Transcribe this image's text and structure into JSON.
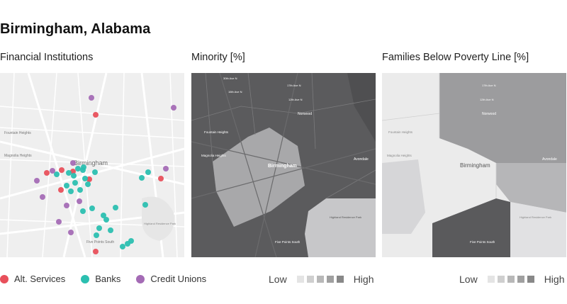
{
  "title": "Birmingham, Alabama",
  "panels": [
    {
      "title": "Financial Institutions"
    },
    {
      "title": "Minority [%]"
    },
    {
      "title": "Families Below Poverty Line [%]"
    }
  ],
  "map_labels": {
    "city": "Birmingham",
    "fountain": "Fountain Heights",
    "magnolia": "Magnolia Heights",
    "norwood": "Norwood",
    "avondale": "Avondale",
    "five_points": "Five Points South",
    "highland": "Highland Residence Park",
    "ave_17": "17th Ave N",
    "ave_30": "30th Ave N",
    "ave_16": "16th Ave N",
    "ave_12": "12th Ave N"
  },
  "categories": [
    {
      "label": "Alt. Services",
      "color": "#e8505b"
    },
    {
      "label": "Banks",
      "color": "#2bbfb0"
    },
    {
      "label": "Credit Unions",
      "color": "#a46bb5"
    }
  ],
  "scale": {
    "low": "Low",
    "high": "High",
    "colors": [
      "#e4e4e4",
      "#cfcfcf",
      "#b8b8b8",
      "#a0a0a0",
      "#888888"
    ]
  },
  "points": {
    "alt": [
      [
        135,
        162
      ],
      [
        66,
        244
      ],
      [
        87,
        240
      ],
      [
        103,
        242
      ],
      [
        126,
        253
      ],
      [
        86,
        268
      ],
      [
        227,
        252
      ],
      [
        135,
        355
      ]
    ],
    "banks": [
      [
        97,
        244
      ],
      [
        104,
        248
      ],
      [
        110,
        238
      ],
      [
        117,
        240
      ],
      [
        120,
        252
      ],
      [
        124,
        260
      ],
      [
        106,
        258
      ],
      [
        94,
        262
      ],
      [
        100,
        270
      ],
      [
        113,
        268
      ],
      [
        134,
        243
      ],
      [
        118,
        236
      ],
      [
        80,
        246
      ],
      [
        200,
        251
      ],
      [
        209,
        243
      ],
      [
        117,
        298
      ],
      [
        130,
        294
      ],
      [
        146,
        304
      ],
      [
        150,
        310
      ],
      [
        140,
        322
      ],
      [
        136,
        332
      ],
      [
        163,
        293
      ],
      [
        205,
        289
      ],
      [
        173,
        348
      ],
      [
        180,
        344
      ],
      [
        185,
        340
      ],
      [
        156,
        325
      ]
    ],
    "cu": [
      [
        129,
        138
      ],
      [
        245,
        152
      ],
      [
        74,
        241
      ],
      [
        52,
        255
      ],
      [
        234,
        238
      ],
      [
        60,
        278
      ],
      [
        94,
        290
      ],
      [
        83,
        313
      ],
      [
        100,
        328
      ],
      [
        103,
        230
      ],
      [
        112,
        284
      ]
    ]
  }
}
